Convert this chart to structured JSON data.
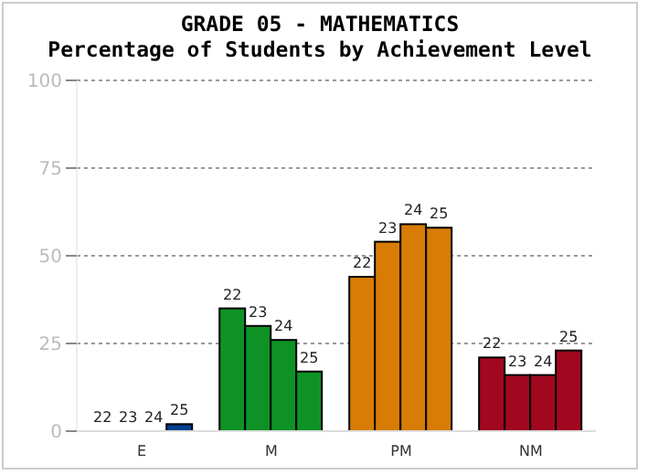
{
  "chart_data": {
    "type": "bar",
    "title": "GRADE 05 - MATHEMATICS",
    "subtitle": "Percentage of Students by Achievement Level",
    "categories": [
      "E",
      "M",
      "PM",
      "NM"
    ],
    "series": [
      {
        "name": "22",
        "colors": [
          "#003f8f",
          "#0e9225",
          "#d87c06",
          "#a10820"
        ],
        "values": [
          0,
          35,
          44,
          21
        ]
      },
      {
        "name": "23",
        "colors": [
          "#003f8f",
          "#0e9225",
          "#d87c06",
          "#a10820"
        ],
        "values": [
          0,
          30,
          54,
          16
        ]
      },
      {
        "name": "24",
        "colors": [
          "#003f8f",
          "#0e9225",
          "#d87c06",
          "#a10820"
        ],
        "values": [
          0,
          26,
          59,
          16
        ]
      },
      {
        "name": "25",
        "colors": [
          "#003f8f",
          "#0e9225",
          "#d87c06",
          "#a10820"
        ],
        "values": [
          2,
          17,
          58,
          23
        ]
      }
    ],
    "ylim": [
      0,
      100
    ],
    "yticks": [
      0,
      25,
      50,
      75,
      100
    ],
    "grid": "y"
  }
}
